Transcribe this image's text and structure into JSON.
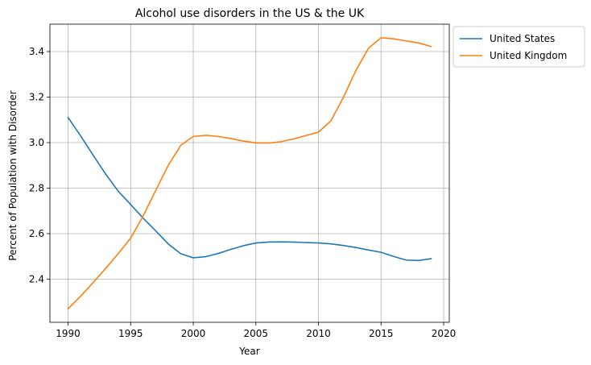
{
  "chart_data": {
    "type": "line",
    "title": "Alcohol use disorders in the US & the UK",
    "xlabel": "Year",
    "ylabel": "Percent of Population with Disorder",
    "xlim": [
      1988.55,
      2020.45
    ],
    "ylim": [
      2.2105,
      3.5205
    ],
    "xticks": [
      1990,
      1995,
      2000,
      2005,
      2010,
      2015,
      2020
    ],
    "xtick_labels": [
      "1990",
      "1995",
      "2000",
      "2005",
      "2010",
      "2015",
      "2020"
    ],
    "yticks": [
      2.4,
      2.6,
      2.8,
      3.0,
      3.2,
      3.4
    ],
    "ytick_labels": [
      "2.4",
      "2.6",
      "2.8",
      "3.0",
      "3.2",
      "3.4"
    ],
    "grid": true,
    "legend_position": "outside-top-right",
    "x": [
      1990,
      1991,
      1992,
      1993,
      1994,
      1995,
      1996,
      1997,
      1998,
      1999,
      2000,
      2001,
      2002,
      2003,
      2004,
      2005,
      2006,
      2007,
      2008,
      2009,
      2010,
      2011,
      2012,
      2013,
      2014,
      2015,
      2016,
      2017,
      2018,
      2019
    ],
    "series": [
      {
        "name": "United States",
        "color": "#1f77b4",
        "values": [
          3.11,
          3.03,
          2.945,
          2.862,
          2.787,
          2.728,
          2.668,
          2.612,
          2.555,
          2.512,
          2.494,
          2.499,
          2.513,
          2.531,
          2.547,
          2.559,
          2.563,
          2.564,
          2.563,
          2.561,
          2.559,
          2.555,
          2.548,
          2.539,
          2.528,
          2.518,
          2.5,
          2.484,
          2.482,
          2.49
        ]
      },
      {
        "name": "United Kingdom",
        "color": "#ff7f0e",
        "values": [
          2.27,
          2.325,
          2.385,
          2.447,
          2.512,
          2.58,
          2.678,
          2.79,
          2.9,
          2.988,
          3.027,
          3.032,
          3.027,
          3.018,
          3.007,
          2.999,
          2.998,
          3.004,
          3.016,
          3.031,
          3.046,
          3.096,
          3.2,
          3.318,
          3.415,
          3.461,
          3.456,
          3.447,
          3.438,
          3.422
        ]
      }
    ]
  }
}
